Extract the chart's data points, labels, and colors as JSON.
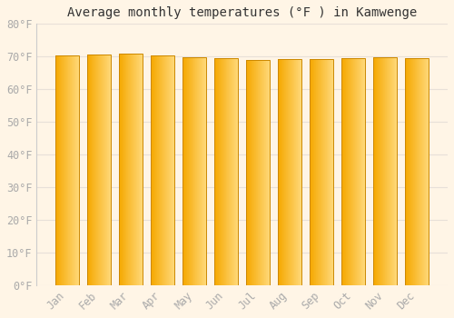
{
  "title": "Average monthly temperatures (°F ) in Kamwenge",
  "months": [
    "Jan",
    "Feb",
    "Mar",
    "Apr",
    "May",
    "Jun",
    "Jul",
    "Aug",
    "Sep",
    "Oct",
    "Nov",
    "Dec"
  ],
  "temperatures": [
    70.3,
    70.5,
    71.0,
    70.3,
    69.8,
    69.4,
    68.9,
    69.3,
    69.3,
    69.6,
    69.8,
    69.6
  ],
  "bar_color_grad_left": "#F5A800",
  "bar_color_grad_right": "#FFD878",
  "bar_edge_color": "#CC8800",
  "background_color": "#FFF5E6",
  "plot_bg_color": "#FFF5E6",
  "grid_color": "#E8E0D8",
  "ylim": [
    0,
    80
  ],
  "yticks": [
    0,
    10,
    20,
    30,
    40,
    50,
    60,
    70,
    80
  ],
  "tick_label_color": "#AAAAAA",
  "title_fontsize": 10,
  "tick_fontsize": 8.5,
  "bar_width": 0.75
}
